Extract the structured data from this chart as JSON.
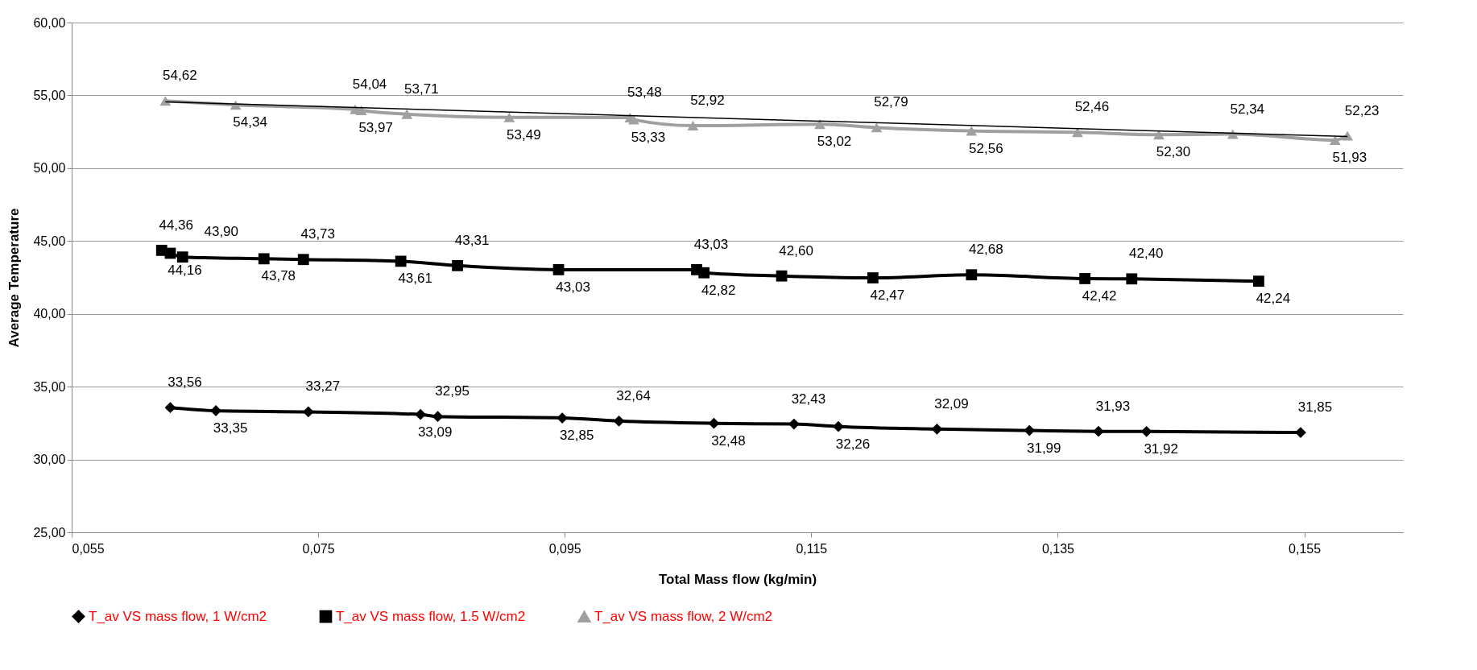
{
  "chart_data": {
    "type": "line",
    "xlabel": "Total Mass flow (kg/min)",
    "ylabel": "Average Temperature",
    "xlim": [
      0.055,
      0.163
    ],
    "xticks": [
      {
        "value": 0.055,
        "label": "0,055"
      },
      {
        "value": 0.075,
        "label": "0,075"
      },
      {
        "value": 0.095,
        "label": "0,095"
      },
      {
        "value": 0.115,
        "label": "0,115"
      },
      {
        "value": 0.135,
        "label": "0,135"
      },
      {
        "value": 0.155,
        "label": "0,155"
      }
    ],
    "ylim": [
      25,
      60
    ],
    "yticks": [
      {
        "value": 25,
        "label": "25,00"
      },
      {
        "value": 30,
        "label": "30,00"
      },
      {
        "value": 35,
        "label": "35,00"
      },
      {
        "value": 40,
        "label": "40,00"
      },
      {
        "value": 45,
        "label": "45,00"
      },
      {
        "value": 50,
        "label": "50,00"
      },
      {
        "value": 55,
        "label": "55,00"
      },
      {
        "value": 60,
        "label": "60,00"
      }
    ],
    "grid": "y",
    "legend": "bottom",
    "series": [
      {
        "name": "T_av VS mass flow, 1 W/cm2",
        "color": "#000000",
        "marker": "diamond",
        "x": [
          0.063,
          0.0667,
          0.0742,
          0.0833,
          0.0847,
          0.0948,
          0.0994,
          0.1071,
          0.1136,
          0.1172,
          0.1252,
          0.1327,
          0.1383,
          0.1422,
          0.1547
        ],
        "values": [
          33.56,
          33.35,
          33.27,
          33.09,
          32.95,
          32.85,
          32.64,
          32.48,
          32.43,
          32.26,
          32.09,
          31.99,
          31.93,
          31.92,
          31.85
        ],
        "value_labels": [
          "33,56",
          "33,35",
          "33,27",
          "33,09",
          "32,95",
          "32,85",
          "32,64",
          "32,48",
          "32,43",
          "32,26",
          "32,09",
          "31,99",
          "31,93",
          "31,92",
          "31,85"
        ]
      },
      {
        "name": "T_av VS mass flow, 1.5 W/cm2",
        "color": "#000000",
        "marker": "square",
        "x": [
          0.0623,
          0.063,
          0.064,
          0.0706,
          0.0738,
          0.0817,
          0.0863,
          0.0945,
          0.1057,
          0.1063,
          0.1126,
          0.12,
          0.128,
          0.1372,
          0.141,
          0.1513
        ],
        "values": [
          44.36,
          44.16,
          43.9,
          43.78,
          43.73,
          43.61,
          43.31,
          43.03,
          43.03,
          42.82,
          42.6,
          42.47,
          42.68,
          42.42,
          42.4,
          42.24
        ],
        "value_labels": [
          "44,36",
          "44,16",
          "43,90",
          "43,78",
          "43,73",
          "43,61",
          "43,31",
          "43,03",
          "43,03",
          "42,82",
          "42,60",
          "42,47",
          "42,68",
          "42,42",
          "42,40",
          "42,24"
        ]
      },
      {
        "name": "T_av VS mass flow, 2 W/cm2",
        "color": "#a0a0a0",
        "marker": "triangle",
        "x": [
          0.0626,
          0.0683,
          0.078,
          0.0785,
          0.0822,
          0.0905,
          0.1003,
          0.1006,
          0.1054,
          0.1157,
          0.1203,
          0.128,
          0.1366,
          0.1432,
          0.1492,
          0.1575,
          0.1585
        ],
        "values": [
          54.62,
          54.34,
          54.04,
          53.97,
          53.71,
          53.49,
          53.48,
          53.33,
          52.92,
          53.02,
          52.79,
          52.56,
          52.46,
          52.3,
          52.34,
          51.93,
          52.23
        ],
        "value_labels": [
          "54,62",
          "54,34",
          "54,04",
          "53,97",
          "53,71",
          "53,49",
          "53,48",
          "53,33",
          "52,92",
          "53,02",
          "52,79",
          "52,56",
          "52,46",
          "52,30",
          "52,34",
          "51,93",
          "52,23"
        ]
      },
      {
        "color": "#000000",
        "marker": "none",
        "x": [
          0.0626,
          0.1585
        ],
        "values": [
          54.55,
          52.17
        ]
      }
    ]
  }
}
